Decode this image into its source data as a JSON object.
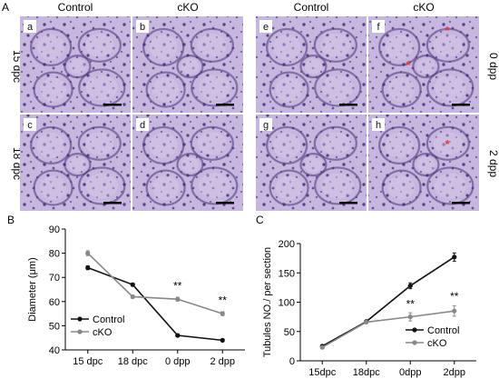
{
  "panel_a": {
    "letter": "A",
    "col_headers": [
      "Control",
      "cKO",
      "Control",
      "cKO"
    ],
    "row_labels_left": [
      "15 dpc",
      "18 dpc"
    ],
    "row_labels_right": [
      "0 dpp",
      "2 dpp"
    ],
    "tiles": [
      {
        "letter": "a",
        "red_star": false
      },
      {
        "letter": "b",
        "red_star": false
      },
      {
        "letter": "e",
        "red_star": false
      },
      {
        "letter": "f",
        "red_star": true
      },
      {
        "letter": "c",
        "red_star": false
      },
      {
        "letter": "d",
        "red_star": false
      },
      {
        "letter": "g",
        "red_star": false
      },
      {
        "letter": "h",
        "red_star": true
      }
    ],
    "stain_color": "#b7a6d3",
    "nucleus_color": "#5a3f8c",
    "star_color": "#e23a3a"
  },
  "chart_data": [
    {
      "panel": "B",
      "type": "line",
      "categories": [
        "15 dpc",
        "18 dpc",
        "0 dpp",
        "2 dpp"
      ],
      "ylabel": "Diameter (μm)",
      "xlabel": "",
      "ylim": [
        40,
        90
      ],
      "yticks": [
        40,
        50,
        60,
        70,
        80,
        90
      ],
      "legend_position": "bottom-left",
      "series": [
        {
          "name": "Control",
          "color": "#111111",
          "values": [
            74,
            67,
            46,
            44
          ],
          "errors": [
            0.8,
            0.6,
            0.6,
            0.5
          ]
        },
        {
          "name": "cKO",
          "color": "#888888",
          "values": [
            80,
            62,
            61,
            55
          ],
          "errors": [
            1.0,
            0.6,
            0.8,
            0.8
          ]
        }
      ],
      "annotations": [
        {
          "category_index": 2,
          "text": "**",
          "y": 65
        },
        {
          "category_index": 3,
          "text": "**",
          "y": 59
        }
      ]
    },
    {
      "panel": "C",
      "type": "line",
      "categories": [
        "15dpc",
        "18dpc",
        "0dpp",
        "2dpp"
      ],
      "ylabel": "Tubules NO./ per section",
      "xlabel": "",
      "ylim": [
        0,
        200
      ],
      "yticks": [
        0,
        50,
        100,
        150,
        200
      ],
      "legend_position": "bottom-right",
      "series": [
        {
          "name": "Control",
          "color": "#111111",
          "values": [
            25,
            67,
            128,
            177
          ],
          "errors": [
            2,
            2,
            5,
            7
          ]
        },
        {
          "name": "cKO",
          "color": "#888888",
          "values": [
            23,
            66,
            75,
            85
          ],
          "errors": [
            2,
            2,
            7,
            9
          ]
        }
      ],
      "annotations": [
        {
          "category_index": 2,
          "text": "**",
          "y": 91
        },
        {
          "category_index": 3,
          "text": "**",
          "y": 104
        }
      ]
    }
  ]
}
